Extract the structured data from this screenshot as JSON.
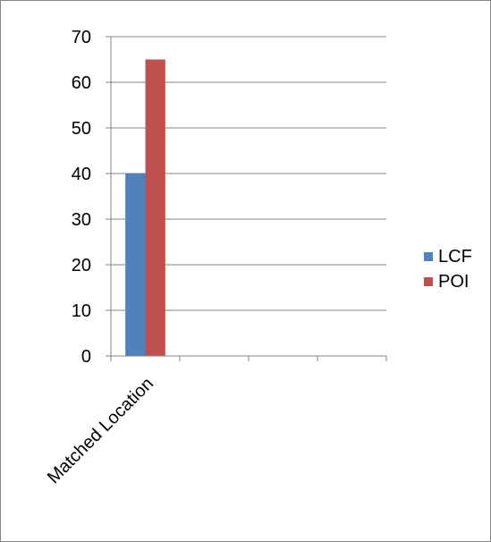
{
  "chart_data": {
    "type": "bar",
    "title": "",
    "xlabel": "",
    "ylabel": "",
    "categories": [
      "Matched Location",
      "",
      "",
      ""
    ],
    "series": [
      {
        "name": "LCF",
        "values": [
          40,
          null,
          null,
          null
        ],
        "color": "#4f81bd"
      },
      {
        "name": "POI",
        "values": [
          65,
          null,
          null,
          null
        ],
        "color": "#c0504d"
      }
    ],
    "ylim": [
      0,
      70
    ],
    "yticks": [
      0,
      10,
      20,
      30,
      40,
      50,
      60,
      70
    ],
    "grid": true,
    "legend_position": "right"
  }
}
